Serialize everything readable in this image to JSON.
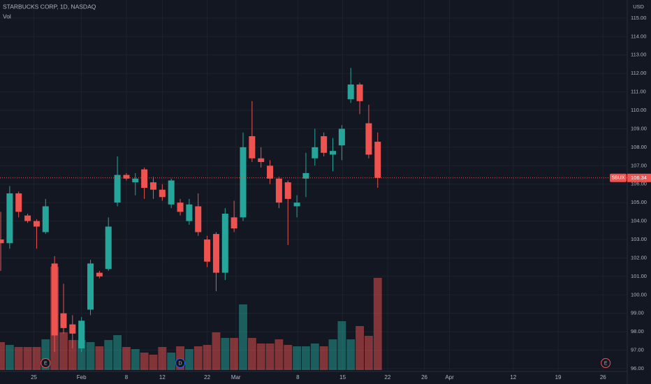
{
  "chart_data": {
    "type": "candlestick",
    "title": "STARBUCKS CORP, 1D, NASDAQ",
    "indicator": "Vol",
    "currency": "USD",
    "up_color": "#26a69a",
    "down_color": "#ef5350",
    "grid": true,
    "open": [
      103.0,
      102.8,
      105.5,
      104.3,
      104.0,
      103.4,
      101.7,
      99.0,
      98.4,
      97.1,
      99.2,
      101.2,
      101.4,
      105.0,
      106.5,
      106.1,
      106.8,
      106.1,
      105.7,
      104.9,
      105.0,
      104.0,
      104.8,
      103.0,
      103.3,
      101.2,
      104.2,
      104.2,
      108.6,
      107.4,
      107.0,
      106.3,
      106.1,
      104.8,
      106.3,
      107.4,
      108.6,
      107.6,
      108.1,
      110.6,
      111.4,
      109.3,
      108.3
    ],
    "high": [
      104.5,
      105.9,
      105.6,
      104.4,
      104.1,
      105.2,
      102.1,
      100.6,
      98.9,
      98.8,
      101.9,
      101.3,
      104.2,
      107.5,
      106.6,
      106.6,
      106.9,
      106.4,
      106.0,
      106.3,
      105.2,
      105.2,
      105.5,
      103.2,
      103.4,
      104.7,
      105.1,
      108.8,
      110.5,
      108.0,
      107.3,
      106.4,
      106.2,
      105.4,
      107.7,
      109.0,
      108.8,
      108.5,
      109.2,
      112.3,
      111.5,
      110.3,
      108.8
    ],
    "low": [
      101.3,
      102.5,
      104.2,
      103.9,
      102.5,
      103.3,
      96.9,
      97.9,
      97.1,
      96.9,
      98.9,
      100.9,
      101.3,
      104.8,
      106.2,
      105.4,
      105.2,
      105.2,
      105.1,
      104.7,
      104.3,
      103.8,
      103.2,
      101.5,
      100.2,
      100.8,
      103.4,
      104.0,
      107.2,
      106.9,
      106.0,
      104.7,
      102.7,
      104.2,
      105.3,
      107.0,
      107.5,
      106.7,
      107.3,
      110.4,
      109.8,
      107.4,
      105.8
    ],
    "close": [
      102.8,
      105.5,
      104.5,
      104.0,
      103.7,
      104.8,
      97.8,
      98.2,
      97.9,
      98.6,
      101.7,
      101.0,
      103.7,
      106.5,
      106.3,
      106.3,
      105.8,
      105.7,
      105.3,
      106.2,
      104.5,
      104.9,
      103.4,
      101.8,
      101.2,
      104.4,
      103.6,
      108.0,
      107.4,
      107.2,
      106.3,
      105.0,
      105.2,
      105.0,
      106.6,
      108.0,
      107.7,
      107.8,
      109.0,
      111.4,
      110.5,
      107.6,
      106.34
    ],
    "volume": [
      4.0,
      3.6,
      3.3,
      3.3,
      3.3,
      4.4,
      14.8,
      5.4,
      4.3,
      4.3,
      4.0,
      3.4,
      4.3,
      5.0,
      3.3,
      3.0,
      2.5,
      2.2,
      3.3,
      2.5,
      3.4,
      3.0,
      3.4,
      3.6,
      5.4,
      4.6,
      4.6,
      9.4,
      4.6,
      3.8,
      3.8,
      4.4,
      3.6,
      3.4,
      3.4,
      3.8,
      3.4,
      4.4,
      7.0,
      4.4,
      6.3,
      4.9,
      13.2
    ],
    "ylim": [
      95.85,
      115.98
    ],
    "yticks": [
      {
        "value": 96,
        "label": "96.00"
      },
      {
        "value": 97,
        "label": "97.00"
      },
      {
        "value": 98,
        "label": "98.00"
      },
      {
        "value": 99,
        "label": "99.00"
      },
      {
        "value": 100,
        "label": "100.00"
      },
      {
        "value": 101,
        "label": "101.00"
      },
      {
        "value": 102,
        "label": "102.00"
      },
      {
        "value": 103,
        "label": "103.00"
      },
      {
        "value": 104,
        "label": "104.00"
      },
      {
        "value": 105,
        "label": "105.00"
      },
      {
        "value": 106,
        "label": "106.00"
      },
      {
        "value": 107,
        "label": "107.00"
      },
      {
        "value": 108,
        "label": "108.00"
      },
      {
        "value": 109,
        "label": "109.00"
      },
      {
        "value": 110,
        "label": "110.00"
      },
      {
        "value": 111,
        "label": "111.00"
      },
      {
        "value": 112,
        "label": "112.00"
      },
      {
        "value": 113,
        "label": "113.00"
      },
      {
        "value": 114,
        "label": "114.00"
      },
      {
        "value": 115,
        "label": "115.00"
      }
    ],
    "xlim": [
      -0.08,
      69.8
    ],
    "xticks": [
      {
        "value": 3.7,
        "label": "25"
      },
      {
        "value": 9.0,
        "label": "Feb"
      },
      {
        "value": 14.0,
        "label": "8"
      },
      {
        "value": 18.0,
        "label": "12"
      },
      {
        "value": 23.0,
        "label": "22"
      },
      {
        "value": 26.2,
        "label": "Mar"
      },
      {
        "value": 33.1,
        "label": "8"
      },
      {
        "value": 38.1,
        "label": "15"
      },
      {
        "value": 43.1,
        "label": "22"
      },
      {
        "value": 47.2,
        "label": "26"
      },
      {
        "value": 50.0,
        "label": "Apr"
      },
      {
        "value": 57.1,
        "label": "12"
      },
      {
        "value": 62.1,
        "label": "19"
      },
      {
        "value": 67.1,
        "label": "26"
      }
    ],
    "last_price": {
      "symbol": "SBUX",
      "value": 106.34
    },
    "events": [
      {
        "label": "E",
        "x": 5
      },
      {
        "label": "D",
        "x": 20
      },
      {
        "label": "E",
        "x": 67.4
      }
    ]
  }
}
